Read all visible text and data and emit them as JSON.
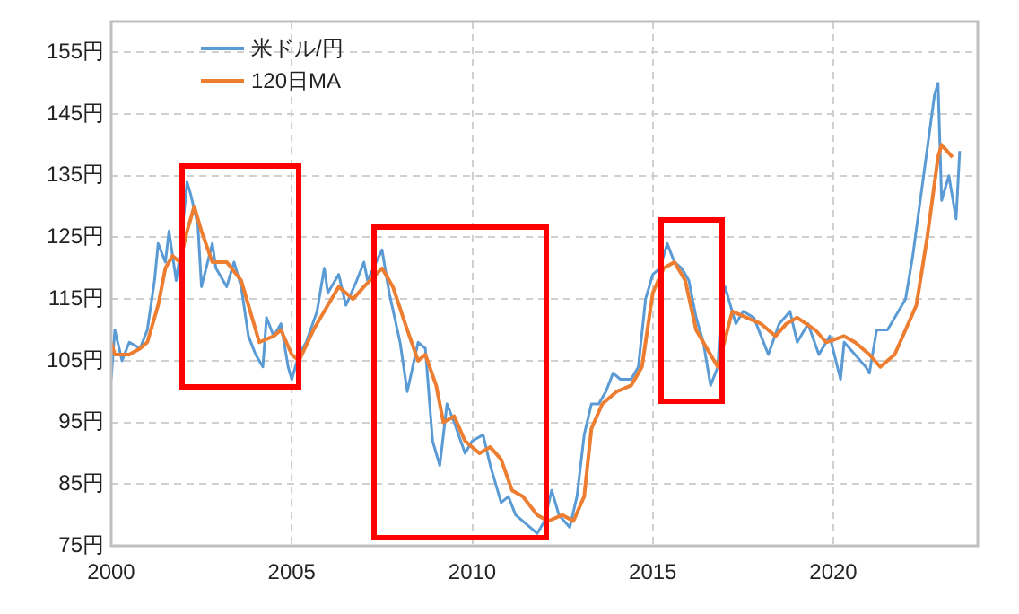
{
  "chart_data": {
    "type": "line",
    "legend": "top left",
    "grid": true,
    "marker": "none",
    "line_style": "solid",
    "xlim": [
      2000,
      2024
    ],
    "xticks": [
      2000,
      2005,
      2010,
      2015,
      2020
    ],
    "ylim": [
      75,
      160
    ],
    "yticks": [
      {
        "value": 75,
        "label": "75円"
      },
      {
        "value": 85,
        "label": "85円"
      },
      {
        "value": 95,
        "label": "95円"
      },
      {
        "value": 105,
        "label": "105円"
      },
      {
        "value": 115,
        "label": "115円"
      },
      {
        "value": 125,
        "label": "125円"
      },
      {
        "value": 135,
        "label": "135円"
      },
      {
        "value": 145,
        "label": "145円"
      },
      {
        "value": 155,
        "label": "155円"
      }
    ],
    "series": [
      {
        "name": "米ドル/円",
        "color": "#5b9bd5",
        "x": [
          2000.0,
          2000.1,
          2000.3,
          2000.5,
          2000.8,
          2001.0,
          2001.2,
          2001.3,
          2001.5,
          2001.6,
          2001.8,
          2001.9,
          2002.1,
          2002.2,
          2002.4,
          2002.5,
          2002.8,
          2002.9,
          2003.2,
          2003.4,
          2003.6,
          2003.8,
          2004.0,
          2004.2,
          2004.3,
          2004.5,
          2004.7,
          2004.9,
          2005.0,
          2005.2,
          2005.4,
          2005.7,
          2005.9,
          2006.0,
          2006.3,
          2006.5,
          2006.8,
          2007.0,
          2007.1,
          2007.5,
          2007.7,
          2008.0,
          2008.2,
          2008.5,
          2008.7,
          2008.9,
          2009.1,
          2009.3,
          2009.5,
          2009.8,
          2010.0,
          2010.3,
          2010.5,
          2010.8,
          2011.0,
          2011.2,
          2011.6,
          2011.8,
          2012.0,
          2012.2,
          2012.4,
          2012.7,
          2012.9,
          2013.1,
          2013.3,
          2013.5,
          2013.7,
          2013.9,
          2014.1,
          2014.4,
          2014.6,
          2014.8,
          2015.0,
          2015.2,
          2015.4,
          2015.6,
          2015.8,
          2016.0,
          2016.2,
          2016.4,
          2016.6,
          2016.8,
          2016.9,
          2017.0,
          2017.3,
          2017.5,
          2017.8,
          2018.0,
          2018.2,
          2018.5,
          2018.8,
          2019.0,
          2019.3,
          2019.6,
          2019.9,
          2020.2,
          2020.3,
          2020.6,
          2020.9,
          2021.0,
          2021.2,
          2021.5,
          2021.8,
          2022.0,
          2022.2,
          2022.5,
          2022.8,
          2022.9,
          2023.0,
          2023.2,
          2023.4,
          2023.5
        ],
        "values": [
          102,
          110,
          105,
          108,
          107,
          110,
          118,
          124,
          121,
          126,
          118,
          122,
          134,
          132,
          127,
          117,
          124,
          120,
          117,
          121,
          117,
          109,
          106,
          104,
          112,
          109,
          111,
          104,
          102,
          106,
          108,
          113,
          120,
          116,
          119,
          114,
          118,
          121,
          118,
          123,
          116,
          108,
          100,
          108,
          107,
          92,
          88,
          98,
          95,
          90,
          92,
          93,
          88,
          82,
          83,
          80,
          78,
          77,
          79,
          84,
          80,
          78,
          83,
          93,
          98,
          98,
          100,
          103,
          102,
          102,
          104,
          115,
          119,
          120,
          124,
          121,
          120,
          118,
          112,
          108,
          101,
          104,
          114,
          117,
          111,
          113,
          112,
          109,
          106,
          111,
          113,
          108,
          111,
          106,
          109,
          102,
          108,
          106,
          104,
          103,
          110,
          110,
          113,
          115,
          122,
          135,
          148,
          150,
          131,
          135,
          128,
          139
        ]
      },
      {
        "name": "120日MA",
        "color": "#ed7d31",
        "x": [
          2000.0,
          2000.1,
          2000.5,
          2000.8,
          2001.0,
          2001.3,
          2001.5,
          2001.7,
          2001.9,
          2002.1,
          2002.3,
          2002.5,
          2002.8,
          2003.2,
          2003.6,
          2003.9,
          2004.1,
          2004.5,
          2004.7,
          2005.0,
          2005.2,
          2005.6,
          2006.0,
          2006.3,
          2006.7,
          2007.0,
          2007.5,
          2007.8,
          2008.2,
          2008.5,
          2008.7,
          2009.0,
          2009.2,
          2009.5,
          2009.8,
          2010.2,
          2010.5,
          2010.8,
          2011.1,
          2011.4,
          2011.8,
          2012.1,
          2012.5,
          2012.8,
          2013.1,
          2013.3,
          2013.6,
          2014.0,
          2014.4,
          2014.7,
          2015.0,
          2015.3,
          2015.6,
          2015.9,
          2016.2,
          2016.5,
          2016.8,
          2017.2,
          2017.6,
          2018.0,
          2018.4,
          2018.7,
          2019.0,
          2019.5,
          2019.8,
          2020.3,
          2020.6,
          2021.0,
          2021.3,
          2021.7,
          2022.0,
          2022.3,
          2022.6,
          2022.9,
          2023.0,
          2023.3
        ],
        "values": [
          108,
          106,
          106,
          107,
          108,
          114,
          120,
          122,
          121,
          126,
          130,
          126,
          121,
          121,
          118,
          112,
          108,
          109,
          110,
          106,
          105,
          110,
          114,
          117,
          115,
          117,
          120,
          117,
          110,
          105,
          106,
          101,
          95,
          96,
          92,
          90,
          91,
          89,
          84,
          83,
          80,
          79,
          80,
          79,
          83,
          94,
          98,
          100,
          101,
          104,
          116,
          120,
          121,
          118,
          110,
          107,
          104,
          113,
          112,
          111,
          109,
          111,
          112,
          110,
          108,
          109,
          108,
          106,
          104,
          106,
          110,
          114,
          125,
          138,
          140,
          138
        ]
      }
    ]
  }
}
